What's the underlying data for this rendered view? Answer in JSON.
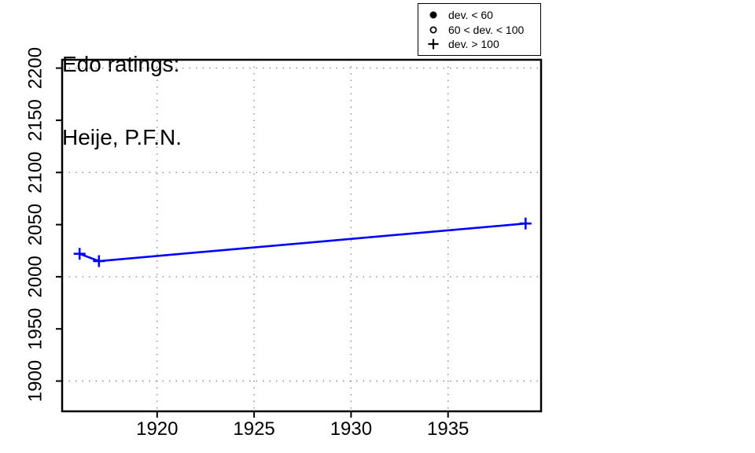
{
  "title": {
    "line1": "Edo ratings:",
    "line2": "Heije, P.F.N."
  },
  "legend": {
    "items": [
      {
        "icon": "filled-circle-icon",
        "label": "dev. < 60"
      },
      {
        "icon": "open-circle-icon",
        "label": "60 < dev. < 100"
      },
      {
        "icon": "plus-icon",
        "label": "dev. > 100"
      }
    ]
  },
  "chart_data": {
    "type": "line",
    "title": "Edo ratings: Heije, P.F.N.",
    "series": [
      {
        "name": "Heije, P.F.N.",
        "marker": "plus",
        "marker_meaning": "dev. > 100",
        "x": [
          1916,
          1917,
          1939
        ],
        "y": [
          2022,
          2015,
          2051
        ]
      }
    ],
    "xlim": [
      1915.1,
      1939.8
    ],
    "ylim": [
      1871,
      2208
    ],
    "x_ticks": [
      1920,
      1925,
      1930,
      1935
    ],
    "y_ticks": [
      1900,
      1950,
      2000,
      2050,
      2100,
      2150,
      2200
    ],
    "x_gridlines": [
      1920,
      1925,
      1930,
      1935
    ],
    "y_gridlines": [
      1900,
      2000,
      2100,
      2200
    ],
    "grid_style": "dotted",
    "legend_position": "top-right",
    "colors": {
      "series_line": "#0000FF",
      "grid": "#8C8C8C",
      "axis": "#000000",
      "background": "#FFFFFF"
    }
  }
}
